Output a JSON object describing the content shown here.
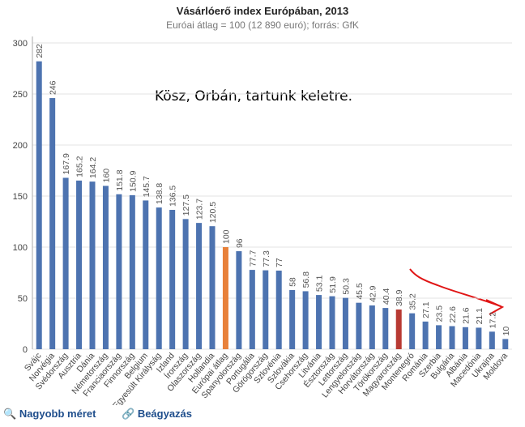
{
  "chart_data": {
    "type": "bar",
    "title": "Vásárlóerő index Európában, 2013",
    "subtitle": "Euróai átlag = 100 (12 890 euró); forrás: GfK",
    "annotation": "Kösz, Orbán, tartunk keletre.",
    "categories": [
      "Svájc",
      "Norvégia",
      "Svédország",
      "Ausztria",
      "Dánia",
      "Németország",
      "Franciaország",
      "Finnország",
      "Belgium",
      "Egyesült Királyság",
      "Izland",
      "Írország",
      "Olaszország",
      "Hollandia",
      "Európai átlag",
      "Spanyolország",
      "Portugália",
      "Görögország",
      "Szlovénia",
      "Szlovákia",
      "Csehország",
      "Litvánia",
      "Észtország",
      "Lettország",
      "Lengyelország",
      "Horvátország",
      "Törökország",
      "Magyarország",
      "Montenegró",
      "Románia",
      "Szerbia",
      "Bulgária",
      "Albánia",
      "Macedónia",
      "Ukrajna",
      "Moldova"
    ],
    "values": [
      282,
      246,
      167.9,
      165.2,
      164.2,
      160,
      151.8,
      150.9,
      145.7,
      138.8,
      136.5,
      127.5,
      123.7,
      120.5,
      100,
      96,
      77.7,
      77.3,
      77,
      58,
      56.8,
      53.1,
      51.9,
      50.3,
      45.5,
      42.9,
      40.4,
      38.9,
      35.2,
      27.1,
      23.5,
      22.6,
      21.6,
      21.1,
      17.2,
      10
    ],
    "colors": [
      "#4d73b0",
      "#4d73b0",
      "#4d73b0",
      "#4d73b0",
      "#4d73b0",
      "#4d73b0",
      "#4d73b0",
      "#4d73b0",
      "#4d73b0",
      "#4d73b0",
      "#4d73b0",
      "#4d73b0",
      "#4d73b0",
      "#4d73b0",
      "#e8813a",
      "#4d73b0",
      "#4d73b0",
      "#4d73b0",
      "#4d73b0",
      "#4d73b0",
      "#4d73b0",
      "#4d73b0",
      "#4d73b0",
      "#4d73b0",
      "#4d73b0",
      "#4d73b0",
      "#4d73b0",
      "#b83a33",
      "#4d73b0",
      "#4d73b0",
      "#4d73b0",
      "#4d73b0",
      "#4d73b0",
      "#4d73b0",
      "#4d73b0",
      "#4d73b0"
    ],
    "ylim": [
      0,
      300
    ],
    "yticks": [
      0,
      50,
      100,
      150,
      200,
      250,
      300
    ],
    "grid": true
  },
  "footer": {
    "links": [
      "Nagyobb méret",
      "Beágyazás"
    ]
  }
}
